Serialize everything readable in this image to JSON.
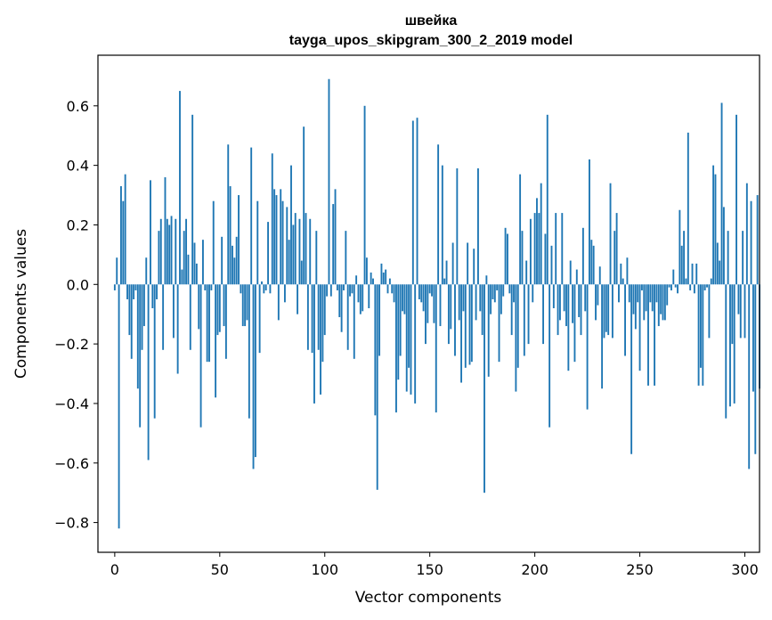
{
  "chart_data": {
    "type": "bar",
    "title": "швейка",
    "subtitle": "tayga_upos_skipgram_300_2_2019 model",
    "xlabel": "Vector components",
    "ylabel": "Components values",
    "xlim": [
      -8,
      307
    ],
    "ylim": [
      -0.9,
      0.77
    ],
    "xticks": [
      0,
      50,
      100,
      150,
      200,
      250,
      300
    ],
    "yticks": [
      -0.8,
      -0.6,
      -0.4,
      -0.2,
      0.0,
      0.2,
      0.4,
      0.6
    ],
    "ytick_labels": [
      "−0.8",
      "−0.6",
      "−0.4",
      "−0.2",
      "0.0",
      "0.2",
      "0.4",
      "0.6"
    ],
    "bar_color": "#1f77b4",
    "values": [
      -0.02,
      0.09,
      -0.82,
      0.33,
      0.28,
      0.37,
      -0.05,
      -0.17,
      -0.25,
      -0.05,
      -0.02,
      -0.35,
      -0.48,
      -0.22,
      -0.14,
      0.09,
      -0.59,
      0.35,
      -0.08,
      -0.45,
      -0.05,
      0.18,
      0.22,
      -0.22,
      0.36,
      0.22,
      0.2,
      0.23,
      -0.18,
      0.22,
      -0.3,
      0.65,
      0.05,
      0.18,
      0.22,
      0.1,
      -0.22,
      0.57,
      0.14,
      0.07,
      -0.15,
      -0.48,
      0.15,
      -0.02,
      -0.26,
      -0.26,
      -0.02,
      0.28,
      -0.38,
      -0.17,
      -0.16,
      0.16,
      -0.14,
      -0.25,
      0.47,
      0.33,
      0.13,
      0.09,
      0.16,
      0.3,
      -0.03,
      -0.14,
      -0.14,
      -0.12,
      -0.45,
      0.46,
      -0.62,
      -0.58,
      0.28,
      -0.23,
      0.01,
      -0.03,
      -0.02,
      0.21,
      -0.03,
      0.44,
      0.32,
      0.3,
      -0.12,
      0.32,
      0.28,
      -0.06,
      0.26,
      0.15,
      0.4,
      0.2,
      0.24,
      -0.1,
      0.22,
      0.08,
      0.53,
      0.24,
      -0.22,
      0.22,
      -0.23,
      -0.4,
      0.18,
      -0.22,
      -0.37,
      -0.26,
      -0.17,
      -0.04,
      0.69,
      -0.04,
      0.27,
      0.32,
      -0.02,
      -0.11,
      -0.16,
      -0.02,
      0.18,
      -0.22,
      -0.04,
      -0.03,
      -0.25,
      0.03,
      -0.06,
      -0.1,
      -0.09,
      0.6,
      0.09,
      -0.08,
      0.04,
      0.02,
      -0.44,
      -0.69,
      -0.24,
      0.07,
      0.04,
      0.05,
      -0.03,
      0.02,
      -0.03,
      -0.06,
      -0.43,
      -0.32,
      -0.24,
      -0.09,
      -0.1,
      -0.36,
      -0.28,
      -0.37,
      0.55,
      -0.4,
      0.56,
      -0.05,
      -0.06,
      -0.09,
      -0.2,
      -0.13,
      -0.03,
      -0.04,
      -0.13,
      -0.43,
      0.47,
      -0.14,
      0.4,
      0.02,
      0.08,
      -0.2,
      -0.15,
      0.14,
      -0.24,
      0.39,
      -0.12,
      -0.33,
      -0.09,
      -0.28,
      0.14,
      -0.27,
      -0.26,
      0.12,
      -0.12,
      0.39,
      -0.09,
      -0.17,
      -0.7,
      0.03,
      -0.31,
      -0.1,
      -0.05,
      -0.06,
      -0.02,
      -0.26,
      -0.1,
      -0.04,
      0.19,
      0.17,
      -0.03,
      -0.17,
      -0.06,
      -0.36,
      -0.28,
      0.37,
      0.18,
      -0.24,
      0.08,
      -0.2,
      0.22,
      -0.06,
      0.24,
      0.29,
      0.24,
      0.34,
      -0.2,
      0.17,
      0.57,
      -0.48,
      0.13,
      -0.08,
      0.24,
      -0.17,
      -0.12,
      0.24,
      -0.09,
      -0.14,
      -0.29,
      0.08,
      -0.13,
      -0.26,
      0.05,
      -0.11,
      -0.17,
      0.19,
      -0.09,
      -0.42,
      0.42,
      0.15,
      0.13,
      -0.12,
      -0.07,
      0.06,
      -0.35,
      -0.18,
      -0.16,
      -0.17,
      0.34,
      -0.18,
      0.18,
      0.24,
      -0.06,
      0.07,
      0.02,
      -0.24,
      0.09,
      -0.06,
      -0.57,
      -0.1,
      -0.15,
      -0.06,
      -0.29,
      -0.02,
      -0.12,
      -0.09,
      -0.34,
      -0.06,
      -0.09,
      -0.34,
      -0.06,
      -0.14,
      -0.1,
      -0.12,
      -0.12,
      -0.07,
      -0.01,
      -0.02,
      0.05,
      -0.01,
      -0.03,
      0.25,
      0.13,
      0.18,
      0.02,
      0.51,
      -0.02,
      0.07,
      -0.03,
      0.07,
      -0.34,
      -0.28,
      -0.34,
      -0.02,
      -0.01,
      -0.18,
      0.02,
      0.4,
      0.37,
      0.14,
      0.08,
      0.61,
      0.26,
      -0.45,
      0.18,
      -0.41,
      -0.2,
      -0.4,
      0.57,
      -0.1,
      -0.18,
      0.18,
      -0.18,
      0.34,
      -0.62,
      0.28,
      -0.36,
      -0.57,
      0.3,
      -0.35
    ]
  }
}
